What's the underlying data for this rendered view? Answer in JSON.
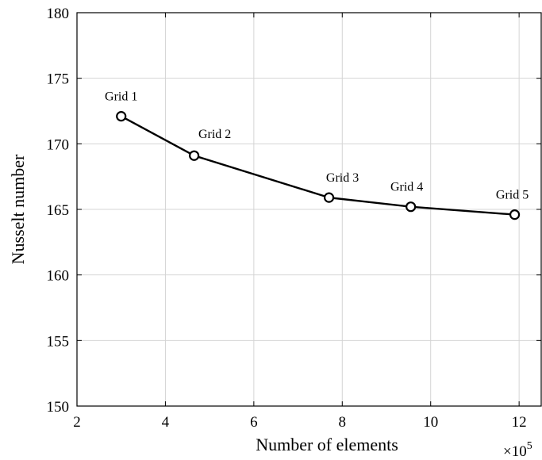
{
  "chart_data": {
    "type": "line",
    "title": "",
    "xlabel": "Number of elements",
    "ylabel": "Nusselt number",
    "x_multiplier_base": "×10",
    "x_multiplier_exponent": "5",
    "xlim": [
      2,
      12.5
    ],
    "ylim": [
      150,
      180
    ],
    "xticks": [
      "2",
      "4",
      "6",
      "8",
      "10",
      "12"
    ],
    "yticks": [
      "150",
      "155",
      "160",
      "165",
      "170",
      "175",
      "180"
    ],
    "grid": true,
    "series": [
      {
        "x": [
          3.0,
          4.65,
          7.7,
          9.55,
          11.9
        ],
        "y": [
          172.1,
          169.1,
          165.9,
          165.2,
          164.6
        ],
        "labels": [
          "Grid 1",
          "Grid 2",
          "Grid 3",
          "Grid 4",
          "Grid 5"
        ],
        "color": "#000000",
        "marker": "circle"
      }
    ]
  }
}
